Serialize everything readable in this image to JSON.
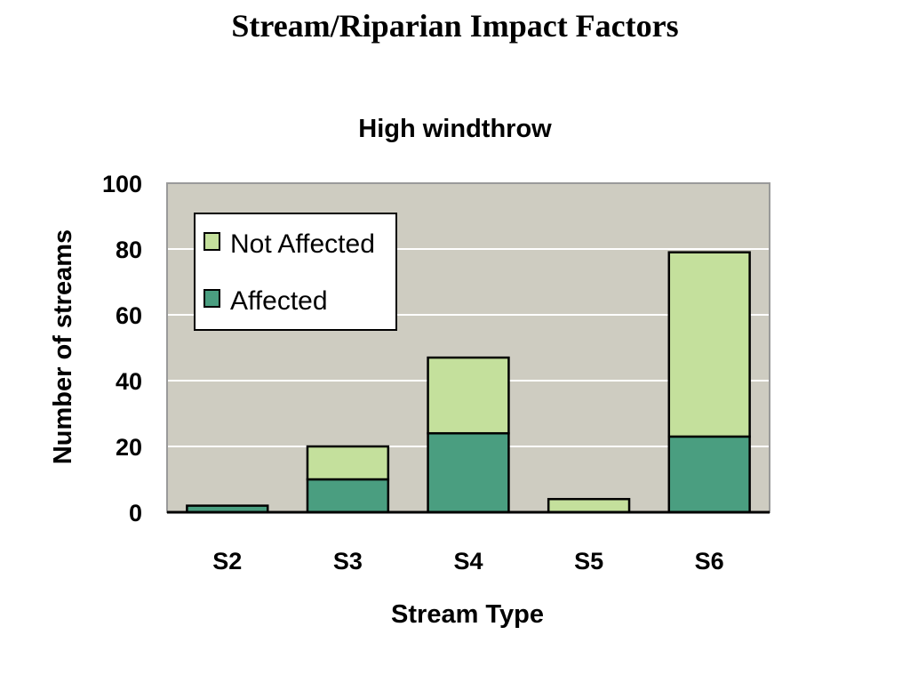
{
  "page": {
    "title": "Stream/Riparian Impact Factors"
  },
  "chart_data": {
    "type": "bar",
    "stacked": true,
    "title": "High windthrow",
    "xlabel": "Stream Type",
    "ylabel": "Number of streams",
    "categories": [
      "S2",
      "S3",
      "S4",
      "S5",
      "S6"
    ],
    "series": [
      {
        "name": "Affected",
        "color": "#4a9e80",
        "values": [
          2,
          10,
          24,
          0,
          23
        ]
      },
      {
        "name": "Not Affected",
        "color": "#c4e09c",
        "values": [
          0,
          10,
          23,
          4,
          56
        ]
      }
    ],
    "ylim": [
      0,
      100
    ],
    "yticks": [
      "0",
      "20",
      "40",
      "60",
      "80",
      "100"
    ],
    "grid": true,
    "legend_position": "top-left",
    "plot_background": "#ceccc1"
  }
}
